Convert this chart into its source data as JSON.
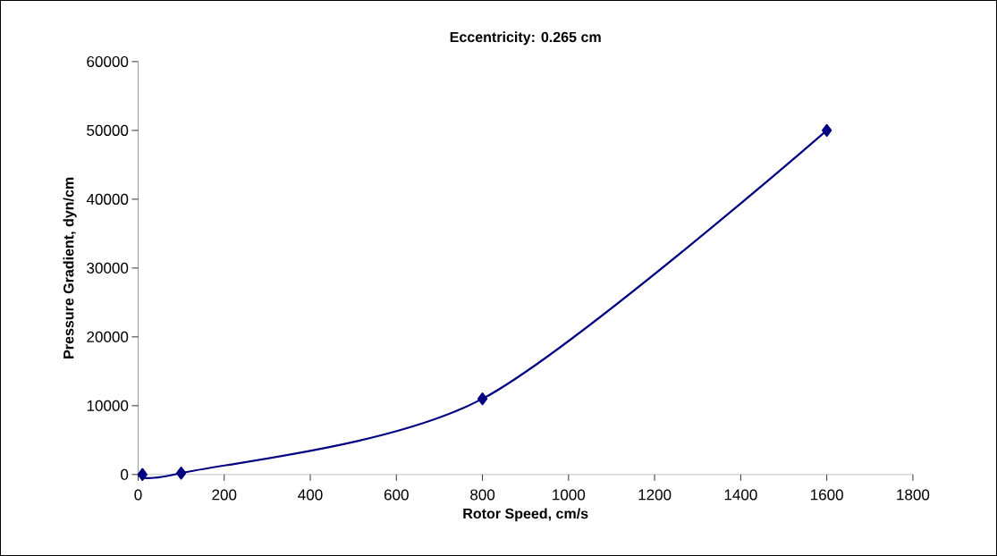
{
  "chart_data": {
    "type": "line",
    "title": "Eccentricity: 0.265 cm",
    "xlabel": "Rotor Speed, cm/s",
    "ylabel": "Pressure Gradient, dyn/cm",
    "x": [
      10,
      100,
      800,
      1600
    ],
    "series": [
      {
        "color": "#000080",
        "values": [
          0,
          200,
          11000,
          50000
        ]
      }
    ],
    "xlim": [
      0,
      1800
    ],
    "xticks": [
      0,
      200,
      400,
      600,
      800,
      1000,
      1200,
      1400,
      1600,
      1800
    ],
    "ylim": [
      0,
      60000
    ],
    "yticks": [
      0,
      10000,
      20000,
      30000,
      40000,
      50000,
      60000
    ],
    "marker": "diamond",
    "line_style": "solid",
    "grid": false
  }
}
